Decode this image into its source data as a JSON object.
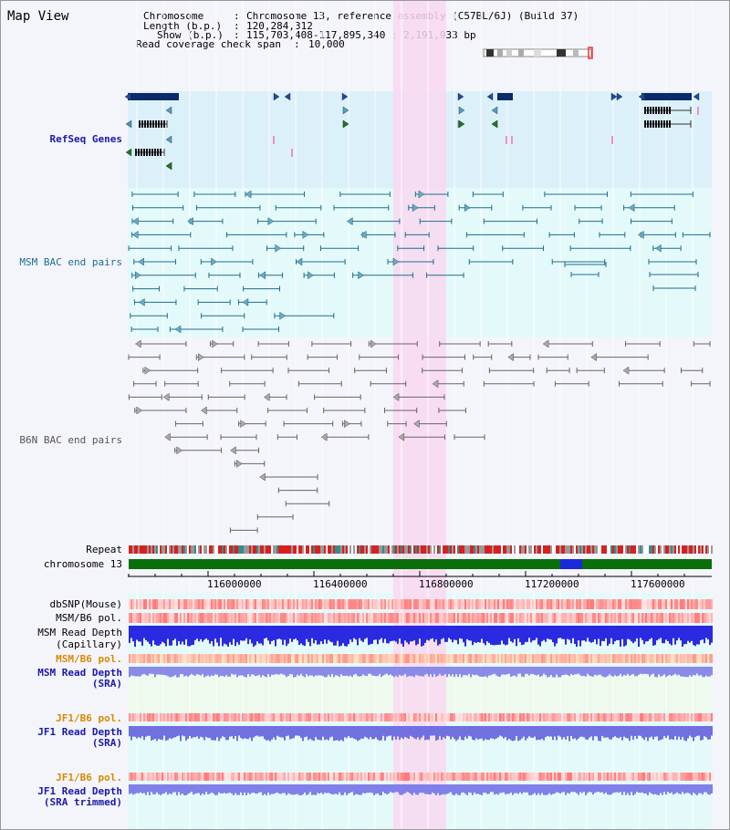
{
  "header": {
    "title": "Map View",
    "chromosome_key": "Chromosome",
    "chromosome_val": "Chromosome 13, reference assembly (C57BL/6J) (Build 37)",
    "length_key": "Length (b.p.)",
    "length_val": "120,284,312",
    "show_key": "Show (b.p.)",
    "show_val": "115,703,408-117,895,340 : 2,191,933 bp",
    "coverage_key": "Read coverage check span",
    "coverage_val": "10,000"
  },
  "tracks": {
    "refseq": "RefSeq Genes",
    "msm_bac": "MSM BAC end pairs",
    "b6n_bac": "B6N BAC end pairs",
    "repeat": "Repeat",
    "chromosome": "chromosome 13",
    "dbsnp": "dbSNP(Mouse)",
    "msm_pol1": "MSM/B6 pol.",
    "msm_depth_cap_1": "MSM Read Depth",
    "msm_depth_cap_2": "(Capillary)",
    "msm_pol2": "MSM/B6 pol.",
    "msm_depth_sra_1": "MSM Read Depth",
    "msm_depth_sra_2": "(SRA)",
    "jf1_pol1": "JF1/B6 pol.",
    "jf1_depth_sra_1": "JF1 Read Depth",
    "jf1_depth_sra_2": "(SRA)",
    "jf1_pol2": "JF1/B6 pol.",
    "jf1_depth_trim_1": "JF1 Read Depth",
    "jf1_depth_trim_2": "(SRA trimmed)"
  },
  "axis": {
    "ticks": [
      "116000000",
      "116400000",
      "116800000",
      "117200000",
      "117600000"
    ]
  },
  "colors": {
    "refseq_bg": "#dcf0fa",
    "msm_bg": "#e4fafa",
    "highlight": "#f8d8f0",
    "chrom_band": "#0a6e0a",
    "msm_feature": "#1e6e8c",
    "b6n_feature": "#666666"
  }
}
